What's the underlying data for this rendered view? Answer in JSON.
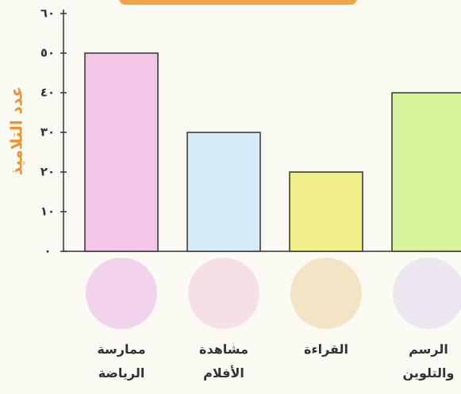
{
  "chart_data": {
    "type": "bar",
    "y_label": "عدد التلاميذ",
    "categories": [
      "ممارسة الرياضة",
      "مشاهدة الأفلام",
      "القراءة",
      "الرسم والتلوين"
    ],
    "values": [
      50,
      30,
      20,
      40
    ],
    "colors": [
      "#f3c5e6",
      "#d3ecf8",
      "#f1ef8a",
      "#d6f49c"
    ],
    "ylim": [
      0,
      60
    ],
    "yticks": [
      {
        "value": 0,
        "label": "٠"
      },
      {
        "value": 10,
        "label": "١٠"
      },
      {
        "value": 20,
        "label": "٢٠"
      },
      {
        "value": 30,
        "label": "٣٠"
      },
      {
        "value": 40,
        "label": "٤٠"
      },
      {
        "value": 50,
        "label": "٥٠"
      },
      {
        "value": 60,
        "label": "٦٠"
      }
    ]
  }
}
